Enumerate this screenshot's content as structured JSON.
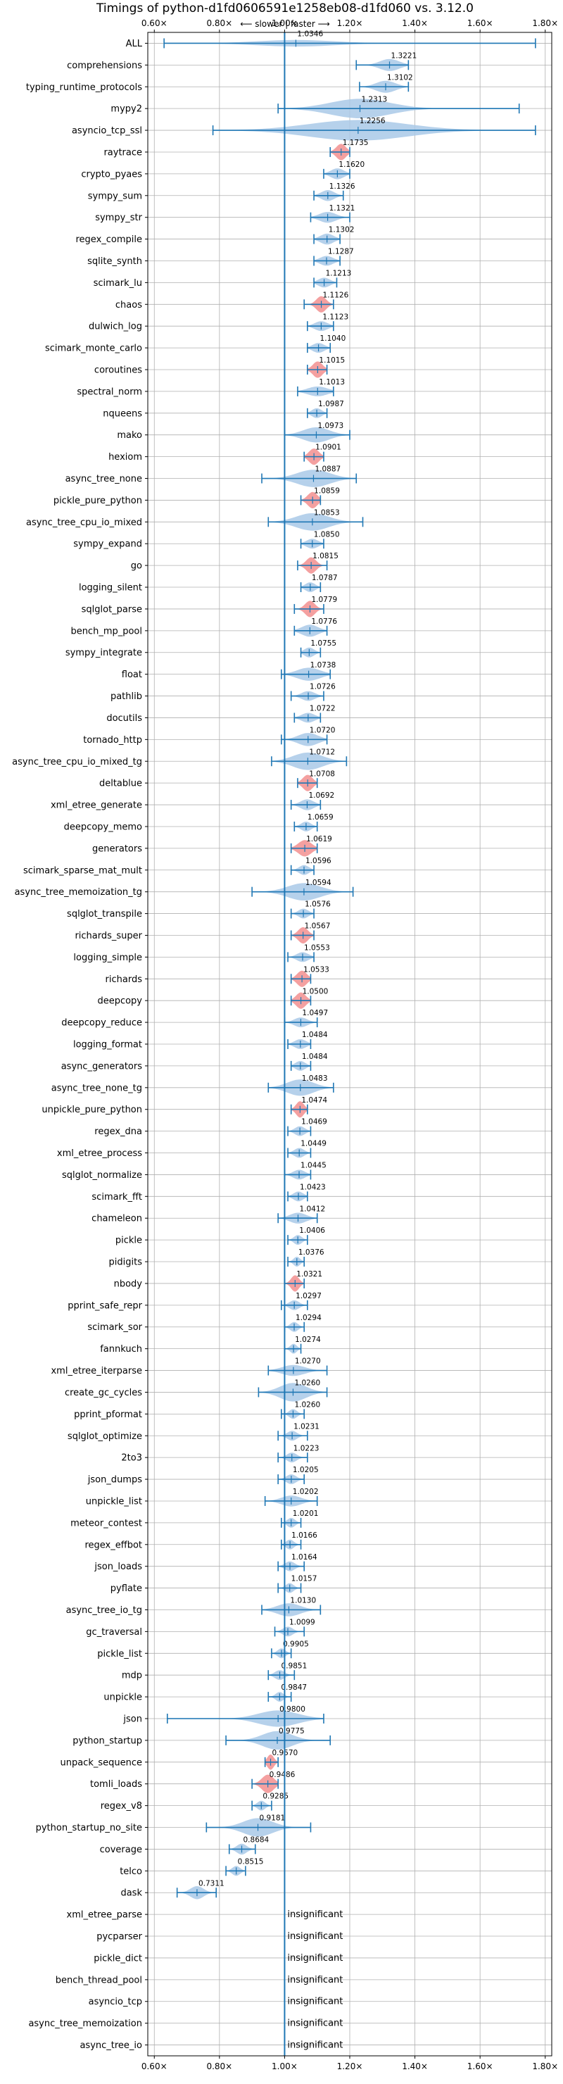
{
  "chart_data": {
    "type": "violin",
    "title": "Timings of python-d1fd0606591e1258eb08-d1fd060 vs. 3.12.0",
    "subtitle": "⟵ slower | faster ⟶",
    "xlim": [
      0.58,
      1.82
    ],
    "xticks": [
      0.6,
      0.8,
      1.0,
      1.2,
      1.4,
      1.6,
      1.8
    ],
    "xtick_labels": [
      "0.60×",
      "0.80×",
      "1.00×",
      "1.20×",
      "1.40×",
      "1.60×",
      "1.80×"
    ],
    "grid": true,
    "reference_line": 1.0,
    "colors": {
      "normal": "#1f77b4",
      "highlight": "#f08080",
      "fill": "#a9c9e8",
      "line": "#1f77b4"
    },
    "insignificant_label": "insignificant",
    "benchmarks": [
      {
        "name": "ALL",
        "value": 1.0346,
        "label": "1.0346",
        "min": 0.63,
        "max": 1.77,
        "hl": false,
        "w": 0.3,
        "sd": 0.12
      },
      {
        "name": "comprehensions",
        "value": 1.3221,
        "label": "1.3221",
        "min": 1.22,
        "max": 1.38,
        "hl": false,
        "w": 0.55,
        "sd": 0.03
      },
      {
        "name": "typing_runtime_protocols",
        "value": 1.3102,
        "label": "1.3102",
        "min": 1.23,
        "max": 1.38,
        "hl": false,
        "w": 0.55,
        "sd": 0.03
      },
      {
        "name": "mypy2",
        "value": 1.2313,
        "label": "1.2313",
        "min": 0.98,
        "max": 1.72,
        "hl": false,
        "w": 0.9,
        "sd": 0.09
      },
      {
        "name": "asyncio_tcp_ssl",
        "value": 1.2256,
        "label": "1.2256",
        "min": 0.78,
        "max": 1.77,
        "hl": false,
        "w": 0.95,
        "sd": 0.15
      },
      {
        "name": "raytrace",
        "value": 1.1735,
        "label": "1.1735",
        "min": 1.14,
        "max": 1.2,
        "hl": true,
        "w": 0.75,
        "sd": 0.015
      },
      {
        "name": "crypto_pyaes",
        "value": 1.162,
        "label": "1.1620",
        "min": 1.12,
        "max": 1.2,
        "hl": false,
        "w": 0.5,
        "sd": 0.02
      },
      {
        "name": "sympy_sum",
        "value": 1.1326,
        "label": "1.1326",
        "min": 1.09,
        "max": 1.18,
        "hl": false,
        "w": 0.5,
        "sd": 0.02
      },
      {
        "name": "sympy_str",
        "value": 1.1321,
        "label": "1.1321",
        "min": 1.08,
        "max": 1.2,
        "hl": false,
        "w": 0.5,
        "sd": 0.025
      },
      {
        "name": "regex_compile",
        "value": 1.1302,
        "label": "1.1302",
        "min": 1.09,
        "max": 1.17,
        "hl": false,
        "w": 0.5,
        "sd": 0.02
      },
      {
        "name": "sqlite_synth",
        "value": 1.1287,
        "label": "1.1287",
        "min": 1.09,
        "max": 1.17,
        "hl": false,
        "w": 0.45,
        "sd": 0.02
      },
      {
        "name": "scimark_lu",
        "value": 1.1213,
        "label": "1.1213",
        "min": 1.09,
        "max": 1.16,
        "hl": false,
        "w": 0.45,
        "sd": 0.018
      },
      {
        "name": "chaos",
        "value": 1.1126,
        "label": "1.1126",
        "min": 1.06,
        "max": 1.15,
        "hl": true,
        "w": 0.75,
        "sd": 0.015
      },
      {
        "name": "dulwich_log",
        "value": 1.1123,
        "label": "1.1123",
        "min": 1.07,
        "max": 1.15,
        "hl": false,
        "w": 0.45,
        "sd": 0.02
      },
      {
        "name": "scimark_monte_carlo",
        "value": 1.104,
        "label": "1.1040",
        "min": 1.07,
        "max": 1.14,
        "hl": false,
        "w": 0.45,
        "sd": 0.018
      },
      {
        "name": "coroutines",
        "value": 1.1015,
        "label": "1.1015",
        "min": 1.07,
        "max": 1.13,
        "hl": true,
        "w": 0.75,
        "sd": 0.015
      },
      {
        "name": "spectral_norm",
        "value": 1.1013,
        "label": "1.1013",
        "min": 1.04,
        "max": 1.15,
        "hl": false,
        "w": 0.45,
        "sd": 0.03
      },
      {
        "name": "nqueens",
        "value": 1.0987,
        "label": "1.0987",
        "min": 1.07,
        "max": 1.13,
        "hl": false,
        "w": 0.45,
        "sd": 0.015
      },
      {
        "name": "mako",
        "value": 1.0973,
        "label": "1.0973",
        "min": 1.0,
        "max": 1.2,
        "hl": false,
        "w": 0.7,
        "sd": 0.04
      },
      {
        "name": "hexiom",
        "value": 1.0901,
        "label": "1.0901",
        "min": 1.06,
        "max": 1.12,
        "hl": true,
        "w": 0.75,
        "sd": 0.015
      },
      {
        "name": "async_tree_none",
        "value": 1.0887,
        "label": "1.0887",
        "min": 0.93,
        "max": 1.22,
        "hl": false,
        "w": 0.8,
        "sd": 0.05
      },
      {
        "name": "pickle_pure_python",
        "value": 1.0859,
        "label": "1.0859",
        "min": 1.05,
        "max": 1.11,
        "hl": true,
        "w": 0.75,
        "sd": 0.015
      },
      {
        "name": "async_tree_cpu_io_mixed",
        "value": 1.0853,
        "label": "1.0853",
        "min": 0.95,
        "max": 1.24,
        "hl": false,
        "w": 0.8,
        "sd": 0.05
      },
      {
        "name": "sympy_expand",
        "value": 1.085,
        "label": "1.0850",
        "min": 1.05,
        "max": 1.12,
        "hl": false,
        "w": 0.45,
        "sd": 0.018
      },
      {
        "name": "go",
        "value": 1.0815,
        "label": "1.0815",
        "min": 1.04,
        "max": 1.13,
        "hl": true,
        "w": 0.75,
        "sd": 0.015
      },
      {
        "name": "logging_silent",
        "value": 1.0787,
        "label": "1.0787",
        "min": 1.05,
        "max": 1.11,
        "hl": false,
        "w": 0.45,
        "sd": 0.015
      },
      {
        "name": "sqlglot_parse",
        "value": 1.0779,
        "label": "1.0779",
        "min": 1.03,
        "max": 1.12,
        "hl": true,
        "w": 0.75,
        "sd": 0.015
      },
      {
        "name": "bench_mp_pool",
        "value": 1.0776,
        "label": "1.0776",
        "min": 1.03,
        "max": 1.13,
        "hl": false,
        "w": 0.55,
        "sd": 0.025
      },
      {
        "name": "sympy_integrate",
        "value": 1.0755,
        "label": "1.0755",
        "min": 1.05,
        "max": 1.11,
        "hl": false,
        "w": 0.45,
        "sd": 0.015
      },
      {
        "name": "float",
        "value": 1.0738,
        "label": "1.0738",
        "min": 0.99,
        "max": 1.14,
        "hl": false,
        "w": 0.6,
        "sd": 0.035
      },
      {
        "name": "pathlib",
        "value": 1.0726,
        "label": "1.0726",
        "min": 1.02,
        "max": 1.12,
        "hl": false,
        "w": 0.45,
        "sd": 0.02
      },
      {
        "name": "docutils",
        "value": 1.0722,
        "label": "1.0722",
        "min": 1.03,
        "max": 1.11,
        "hl": false,
        "w": 0.45,
        "sd": 0.02
      },
      {
        "name": "tornado_http",
        "value": 1.072,
        "label": "1.0720",
        "min": 0.99,
        "max": 1.13,
        "hl": false,
        "w": 0.6,
        "sd": 0.03
      },
      {
        "name": "async_tree_cpu_io_mixed_tg",
        "value": 1.0712,
        "label": "1.0712",
        "min": 0.96,
        "max": 1.19,
        "hl": false,
        "w": 0.8,
        "sd": 0.045
      },
      {
        "name": "deltablue",
        "value": 1.0708,
        "label": "1.0708",
        "min": 1.04,
        "max": 1.1,
        "hl": true,
        "w": 0.75,
        "sd": 0.015
      },
      {
        "name": "xml_etree_generate",
        "value": 1.0692,
        "label": "1.0692",
        "min": 1.02,
        "max": 1.11,
        "hl": false,
        "w": 0.5,
        "sd": 0.02
      },
      {
        "name": "deepcopy_memo",
        "value": 1.0659,
        "label": "1.0659",
        "min": 1.03,
        "max": 1.1,
        "hl": false,
        "w": 0.45,
        "sd": 0.015
      },
      {
        "name": "generators",
        "value": 1.0619,
        "label": "1.0619",
        "min": 1.02,
        "max": 1.1,
        "hl": true,
        "w": 0.75,
        "sd": 0.02
      },
      {
        "name": "scimark_sparse_mat_mult",
        "value": 1.0596,
        "label": "1.0596",
        "min": 1.02,
        "max": 1.09,
        "hl": false,
        "w": 0.45,
        "sd": 0.015
      },
      {
        "name": "async_tree_memoization_tg",
        "value": 1.0594,
        "label": "1.0594",
        "min": 0.9,
        "max": 1.21,
        "hl": false,
        "w": 0.8,
        "sd": 0.05
      },
      {
        "name": "sqlglot_transpile",
        "value": 1.0576,
        "label": "1.0576",
        "min": 1.02,
        "max": 1.09,
        "hl": false,
        "w": 0.45,
        "sd": 0.015
      },
      {
        "name": "richards_super",
        "value": 1.0567,
        "label": "1.0567",
        "min": 1.02,
        "max": 1.09,
        "hl": true,
        "w": 0.75,
        "sd": 0.015
      },
      {
        "name": "logging_simple",
        "value": 1.0553,
        "label": "1.0553",
        "min": 1.01,
        "max": 1.09,
        "hl": false,
        "w": 0.45,
        "sd": 0.018
      },
      {
        "name": "richards",
        "value": 1.0533,
        "label": "1.0533",
        "min": 1.02,
        "max": 1.08,
        "hl": true,
        "w": 0.75,
        "sd": 0.015
      },
      {
        "name": "deepcopy",
        "value": 1.05,
        "label": "1.0500",
        "min": 1.02,
        "max": 1.08,
        "hl": true,
        "w": 0.75,
        "sd": 0.015
      },
      {
        "name": "deepcopy_reduce",
        "value": 1.0497,
        "label": "1.0497",
        "min": 1.0,
        "max": 1.1,
        "hl": false,
        "w": 0.45,
        "sd": 0.02
      },
      {
        "name": "logging_format",
        "value": 1.0484,
        "label": "1.0484",
        "min": 1.01,
        "max": 1.08,
        "hl": false,
        "w": 0.45,
        "sd": 0.018
      },
      {
        "name": "async_generators",
        "value": 1.0484,
        "label": "1.0484",
        "min": 1.02,
        "max": 1.08,
        "hl": false,
        "w": 0.45,
        "sd": 0.015
      },
      {
        "name": "async_tree_none_tg",
        "value": 1.0483,
        "label": "1.0483",
        "min": 0.95,
        "max": 1.15,
        "hl": false,
        "w": 0.75,
        "sd": 0.04
      },
      {
        "name": "unpickle_pure_python",
        "value": 1.0474,
        "label": "1.0474",
        "min": 1.02,
        "max": 1.07,
        "hl": true,
        "w": 0.75,
        "sd": 0.012
      },
      {
        "name": "regex_dna",
        "value": 1.0469,
        "label": "1.0469",
        "min": 1.01,
        "max": 1.08,
        "hl": false,
        "w": 0.45,
        "sd": 0.015
      },
      {
        "name": "xml_etree_process",
        "value": 1.0449,
        "label": "1.0449",
        "min": 1.01,
        "max": 1.08,
        "hl": false,
        "w": 0.45,
        "sd": 0.015
      },
      {
        "name": "sqlglot_normalize",
        "value": 1.0445,
        "label": "1.0445",
        "min": 1.0,
        "max": 1.08,
        "hl": false,
        "w": 0.45,
        "sd": 0.018
      },
      {
        "name": "scimark_fft",
        "value": 1.0423,
        "label": "1.0423",
        "min": 1.01,
        "max": 1.07,
        "hl": false,
        "w": 0.45,
        "sd": 0.015
      },
      {
        "name": "chameleon",
        "value": 1.0412,
        "label": "1.0412",
        "min": 0.98,
        "max": 1.1,
        "hl": false,
        "w": 0.5,
        "sd": 0.025
      },
      {
        "name": "pickle",
        "value": 1.0406,
        "label": "1.0406",
        "min": 1.01,
        "max": 1.07,
        "hl": false,
        "w": 0.45,
        "sd": 0.012
      },
      {
        "name": "pidigits",
        "value": 1.0376,
        "label": "1.0376",
        "min": 1.01,
        "max": 1.06,
        "hl": false,
        "w": 0.45,
        "sd": 0.01
      },
      {
        "name": "nbody",
        "value": 1.0321,
        "label": "1.0321",
        "min": 1.0,
        "max": 1.06,
        "hl": true,
        "w": 0.75,
        "sd": 0.012
      },
      {
        "name": "pprint_safe_repr",
        "value": 1.0297,
        "label": "1.0297",
        "min": 0.99,
        "max": 1.07,
        "hl": false,
        "w": 0.45,
        "sd": 0.015
      },
      {
        "name": "scimark_sor",
        "value": 1.0294,
        "label": "1.0294",
        "min": 1.0,
        "max": 1.06,
        "hl": false,
        "w": 0.45,
        "sd": 0.012
      },
      {
        "name": "fannkuch",
        "value": 1.0274,
        "label": "1.0274",
        "min": 1.0,
        "max": 1.05,
        "hl": false,
        "w": 0.45,
        "sd": 0.01
      },
      {
        "name": "xml_etree_iterparse",
        "value": 1.027,
        "label": "1.0270",
        "min": 0.95,
        "max": 1.13,
        "hl": false,
        "w": 0.5,
        "sd": 0.035
      },
      {
        "name": "create_gc_cycles",
        "value": 1.026,
        "label": "1.0260",
        "min": 0.92,
        "max": 1.13,
        "hl": false,
        "w": 0.85,
        "sd": 0.04
      },
      {
        "name": "pprint_pformat",
        "value": 1.026,
        "label": "1.0260",
        "min": 0.99,
        "max": 1.06,
        "hl": false,
        "w": 0.45,
        "sd": 0.012
      },
      {
        "name": "sqlglot_optimize",
        "value": 1.0231,
        "label": "1.0231",
        "min": 0.98,
        "max": 1.07,
        "hl": false,
        "w": 0.45,
        "sd": 0.015
      },
      {
        "name": "2to3",
        "value": 1.0223,
        "label": "1.0223",
        "min": 0.98,
        "max": 1.07,
        "hl": false,
        "w": 0.45,
        "sd": 0.015
      },
      {
        "name": "json_dumps",
        "value": 1.0205,
        "label": "1.0205",
        "min": 0.98,
        "max": 1.06,
        "hl": false,
        "w": 0.45,
        "sd": 0.015
      },
      {
        "name": "unpickle_list",
        "value": 1.0202,
        "label": "1.0202",
        "min": 0.94,
        "max": 1.1,
        "hl": false,
        "w": 0.5,
        "sd": 0.03
      },
      {
        "name": "meteor_contest",
        "value": 1.0201,
        "label": "1.0201",
        "min": 0.99,
        "max": 1.05,
        "hl": false,
        "w": 0.45,
        "sd": 0.012
      },
      {
        "name": "regex_effbot",
        "value": 1.0166,
        "label": "1.0166",
        "min": 0.99,
        "max": 1.05,
        "hl": false,
        "w": 0.45,
        "sd": 0.012
      },
      {
        "name": "json_loads",
        "value": 1.0164,
        "label": "1.0164",
        "min": 0.98,
        "max": 1.06,
        "hl": false,
        "w": 0.45,
        "sd": 0.015
      },
      {
        "name": "pyflate",
        "value": 1.0157,
        "label": "1.0157",
        "min": 0.98,
        "max": 1.05,
        "hl": false,
        "w": 0.45,
        "sd": 0.012
      },
      {
        "name": "async_tree_io_tg",
        "value": 1.013,
        "label": "1.0130",
        "min": 0.93,
        "max": 1.11,
        "hl": false,
        "w": 0.6,
        "sd": 0.035
      },
      {
        "name": "gc_traversal",
        "value": 1.0099,
        "label": "1.0099",
        "min": 0.97,
        "max": 1.06,
        "hl": false,
        "w": 0.45,
        "sd": 0.015
      },
      {
        "name": "pickle_list",
        "value": 0.9905,
        "label": "0.9905",
        "min": 0.96,
        "max": 1.02,
        "hl": false,
        "w": 0.45,
        "sd": 0.012
      },
      {
        "name": "mdp",
        "value": 0.9851,
        "label": "0.9851",
        "min": 0.95,
        "max": 1.03,
        "hl": false,
        "w": 0.45,
        "sd": 0.015
      },
      {
        "name": "unpickle",
        "value": 0.9847,
        "label": "0.9847",
        "min": 0.95,
        "max": 1.02,
        "hl": false,
        "w": 0.45,
        "sd": 0.012
      },
      {
        "name": "json",
        "value": 0.98,
        "label": "0.9800",
        "min": 0.64,
        "max": 1.12,
        "hl": false,
        "w": 0.75,
        "sd": 0.06
      },
      {
        "name": "python_startup",
        "value": 0.9775,
        "label": "0.9775",
        "min": 0.82,
        "max": 1.14,
        "hl": false,
        "w": 0.85,
        "sd": 0.045
      },
      {
        "name": "unpack_sequence",
        "value": 0.957,
        "label": "0.9570",
        "min": 0.94,
        "max": 0.98,
        "hl": true,
        "w": 0.7,
        "sd": 0.01
      },
      {
        "name": "tomli_loads",
        "value": 0.9486,
        "label": "0.9486",
        "min": 0.9,
        "max": 0.98,
        "hl": true,
        "w": 0.85,
        "sd": 0.018
      },
      {
        "name": "regex_v8",
        "value": 0.9285,
        "label": "0.9285",
        "min": 0.9,
        "max": 0.96,
        "hl": false,
        "w": 0.45,
        "sd": 0.012
      },
      {
        "name": "python_startup_no_site",
        "value": 0.9181,
        "label": "0.9181",
        "min": 0.76,
        "max": 1.08,
        "hl": false,
        "w": 0.85,
        "sd": 0.045
      },
      {
        "name": "coverage",
        "value": 0.8684,
        "label": "0.8684",
        "min": 0.83,
        "max": 0.91,
        "hl": false,
        "w": 0.5,
        "sd": 0.015
      },
      {
        "name": "telco",
        "value": 0.8515,
        "label": "0.8515",
        "min": 0.82,
        "max": 0.88,
        "hl": false,
        "w": 0.45,
        "sd": 0.012
      },
      {
        "name": "dask",
        "value": 0.7311,
        "label": "0.7311",
        "min": 0.67,
        "max": 0.79,
        "hl": false,
        "w": 0.6,
        "sd": 0.02
      },
      {
        "name": "xml_etree_parse",
        "insignificant": true
      },
      {
        "name": "pycparser",
        "insignificant": true
      },
      {
        "name": "pickle_dict",
        "insignificant": true
      },
      {
        "name": "bench_thread_pool",
        "insignificant": true
      },
      {
        "name": "asyncio_tcp",
        "insignificant": true
      },
      {
        "name": "async_tree_memoization",
        "insignificant": true
      },
      {
        "name": "async_tree_io",
        "insignificant": true
      }
    ]
  }
}
